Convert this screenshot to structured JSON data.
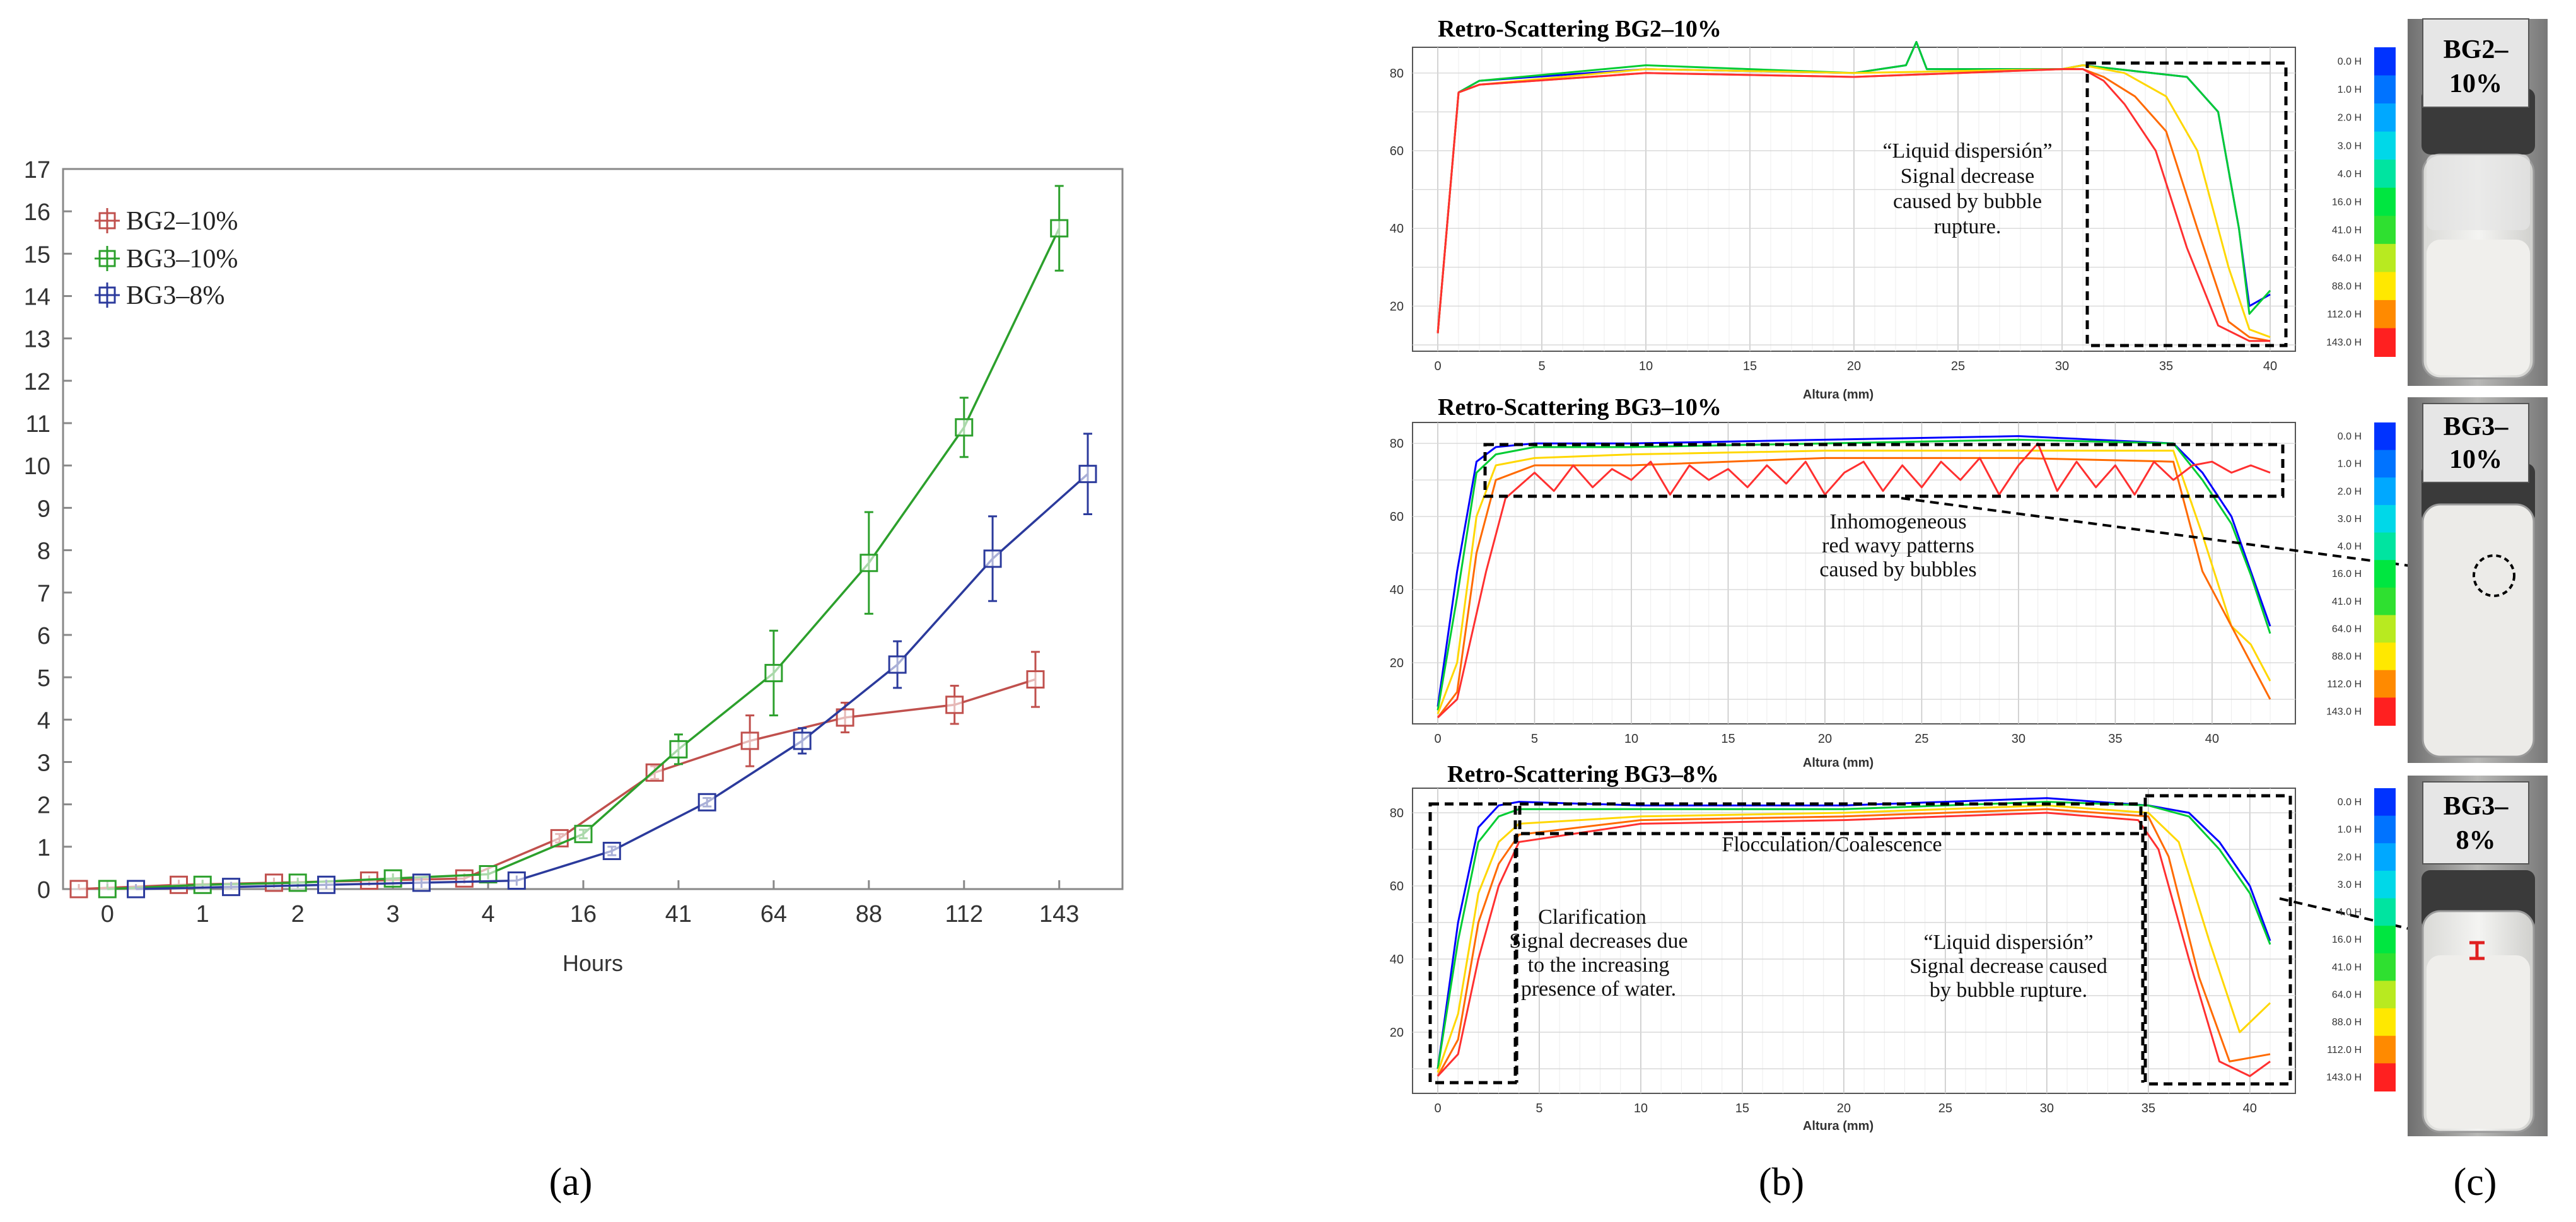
{
  "panel_labels": {
    "a": "(a)",
    "b": "(b)",
    "c": "(c)"
  },
  "chart_data": [
    {
      "id": "panel-a",
      "type": "line",
      "title": "",
      "xlabel": "Hours",
      "ylabel": "",
      "categories": [
        "0",
        "1",
        "2",
        "3",
        "4",
        "16",
        "41",
        "64",
        "88",
        "112",
        "143"
      ],
      "y_ticks": [
        0,
        1,
        2,
        3,
        4,
        5,
        6,
        7,
        8,
        9,
        10,
        11,
        12,
        13,
        14,
        15,
        16,
        17
      ],
      "ylim": [
        0,
        17
      ],
      "legend_position": "top-left",
      "series": [
        {
          "name": "BG2–10%",
          "color": "#c0504d",
          "x": [
            -0.3,
            0.75,
            1.75,
            2.75,
            3.75,
            4.75,
            5.75,
            6.75,
            7.75,
            8.9,
            9.75
          ],
          "values": [
            0.0,
            0.1,
            0.15,
            0.2,
            0.25,
            1.2,
            2.75,
            3.5,
            4.05,
            4.35,
            4.95
          ],
          "errors": [
            0,
            0,
            0,
            0,
            0,
            0.1,
            0.15,
            0.6,
            0.35,
            0.45,
            0.65
          ]
        },
        {
          "name": "BG3–10%",
          "color": "#2ca02c",
          "x": [
            0.0,
            1.0,
            2.0,
            3.0,
            4.0,
            5.0,
            6.0,
            7.0,
            8.0,
            9.0,
            10.0
          ],
          "values": [
            0.0,
            0.1,
            0.15,
            0.25,
            0.35,
            1.3,
            3.3,
            5.1,
            7.7,
            10.9,
            15.6
          ],
          "errors": [
            0,
            0,
            0,
            0,
            0,
            0.1,
            0.35,
            1.0,
            1.2,
            0.7,
            1.0
          ]
        },
        {
          "name": "BG3–8%",
          "color": "#2b3a9c",
          "x": [
            0.3,
            1.3,
            2.3,
            3.3,
            4.3,
            5.3,
            6.3,
            7.3,
            8.3,
            9.3,
            10.3
          ],
          "values": [
            0.0,
            0.05,
            0.1,
            0.15,
            0.2,
            0.9,
            2.05,
            3.5,
            5.3,
            7.8,
            9.8
          ],
          "errors": [
            0,
            0,
            0,
            0,
            0,
            0.1,
            0.1,
            0.3,
            0.55,
            1.0,
            0.95
          ]
        }
      ]
    },
    {
      "id": "panel-b1",
      "type": "line",
      "title": "Retro-Scattering BG2–10%",
      "xlabel": "Altura (mm)",
      "xlim": [
        0,
        40
      ],
      "ylim": [
        10,
        85
      ],
      "x_ticks": [
        0,
        5,
        10,
        15,
        20,
        25,
        30,
        35,
        40
      ],
      "y_ticks": [
        20,
        40,
        60,
        80
      ],
      "annotations": [
        "“Liquid dispersión”",
        "Signal decrease",
        "caused by bubble",
        "rupture."
      ],
      "series": [
        {
          "name": "0.0 H",
          "color": "#0000ff",
          "x": [
            0,
            1,
            2,
            10,
            20,
            22.5,
            23,
            23.5,
            30,
            31,
            36,
            37.5,
            38.5,
            39,
            40
          ],
          "values": [
            13,
            75,
            78,
            81,
            80,
            82,
            88,
            81,
            81,
            82,
            79,
            70,
            40,
            20,
            23
          ]
        },
        {
          "name": "16.0 H",
          "color": "#00cc33",
          "x": [
            0,
            1,
            2,
            10,
            20,
            22.5,
            23,
            23.5,
            30,
            31,
            36,
            37.5,
            38.5,
            39,
            40
          ],
          "values": [
            13,
            75,
            78,
            82,
            80,
            82,
            88,
            81,
            81,
            82,
            79,
            70,
            40,
            18,
            24
          ]
        },
        {
          "name": "64.0 H",
          "color": "#ffd700",
          "x": [
            0,
            1,
            2,
            10,
            20,
            30,
            31,
            33,
            35,
            36.5,
            38,
            39,
            40
          ],
          "values": [
            13,
            75,
            77,
            81,
            80,
            81,
            82,
            80,
            74,
            60,
            30,
            14,
            12
          ]
        },
        {
          "name": "143.0 H",
          "color": "#ff6a00",
          "x": [
            0,
            1,
            2,
            10,
            20,
            30,
            31,
            32,
            33.5,
            35,
            36.5,
            38,
            39,
            40
          ],
          "values": [
            13,
            75,
            77,
            80,
            79,
            81,
            81,
            79,
            74,
            65,
            40,
            16,
            12,
            11
          ]
        },
        {
          "name": "112.0 H",
          "color": "#ff3030",
          "x": [
            0,
            1,
            2,
            10,
            20,
            30,
            31,
            32,
            33,
            34.5,
            36,
            37.5,
            39,
            40
          ],
          "values": [
            13,
            75,
            77,
            80,
            79,
            81,
            81,
            78,
            72,
            60,
            35,
            15,
            11,
            11
          ]
        }
      ]
    },
    {
      "id": "panel-b2",
      "type": "line",
      "title": "Retro-Scattering BG3–10%",
      "xlabel": "Altura (mm)",
      "xlim": [
        0,
        43
      ],
      "ylim": [
        5,
        84
      ],
      "x_ticks": [
        0,
        5,
        10,
        15,
        20,
        25,
        30,
        35,
        40
      ],
      "y_ticks": [
        20,
        40,
        60,
        80
      ],
      "annotations": [
        "Inhomogeneous",
        "red wavy patterns",
        "caused by bubbles"
      ],
      "series": [
        {
          "name": "0.0 H",
          "color": "#0000ff",
          "x": [
            0,
            1,
            2,
            3,
            5,
            10,
            20,
            30,
            38,
            39.5,
            41,
            42,
            43
          ],
          "values": [
            8,
            45,
            75,
            79,
            80,
            80,
            81,
            82,
            80,
            72,
            60,
            45,
            30
          ]
        },
        {
          "name": "16.0 H",
          "color": "#00cc33",
          "x": [
            0,
            1,
            2,
            3,
            5,
            10,
            20,
            30,
            38,
            39.5,
            41,
            42,
            43
          ],
          "values": [
            7,
            38,
            72,
            77,
            79,
            79,
            80,
            81,
            80,
            70,
            58,
            44,
            28
          ]
        },
        {
          "name": "64.0 H",
          "color": "#ffd700",
          "x": [
            0,
            1,
            2,
            3,
            5,
            10,
            20,
            30,
            38,
            39.5,
            41,
            42,
            43
          ],
          "values": [
            6,
            20,
            60,
            74,
            76,
            77,
            78,
            78,
            78,
            55,
            30,
            25,
            15
          ]
        },
        {
          "name": "143.0 H",
          "color": "#ff6a00",
          "x": [
            0,
            1,
            2,
            3,
            5,
            10,
            20,
            30,
            38,
            39.5,
            41,
            42,
            43
          ],
          "values": [
            5,
            12,
            50,
            70,
            74,
            74,
            76,
            76,
            75,
            45,
            30,
            20,
            10
          ]
        },
        {
          "name": "112.0 H",
          "color": "#ff3030",
          "x": [
            0,
            1,
            2.5,
            3.5,
            5,
            6,
            7,
            8,
            9,
            10,
            11,
            12,
            13,
            14,
            15,
            16,
            17,
            18,
            19,
            20,
            21,
            22,
            23,
            24,
            25,
            26,
            27,
            28,
            29,
            30,
            31,
            32,
            33,
            34,
            35,
            36,
            37,
            38,
            39,
            40,
            41,
            42,
            43
          ],
          "values": [
            5,
            10,
            45,
            65,
            72,
            67,
            74,
            68,
            73,
            70,
            75,
            66,
            74,
            70,
            73,
            68,
            74,
            69,
            75,
            66,
            72,
            75,
            67,
            74,
            68,
            75,
            70,
            76,
            66,
            74,
            80,
            67,
            75,
            68,
            74,
            66,
            75,
            70,
            74,
            75,
            72,
            74,
            72
          ]
        }
      ]
    },
    {
      "id": "panel-b3",
      "type": "line",
      "title": "Retro-Scattering BG3–8%",
      "xlabel": "Altura (mm)",
      "xlim": [
        0,
        41
      ],
      "ylim": [
        5,
        85
      ],
      "x_ticks": [
        0,
        5,
        10,
        15,
        20,
        25,
        30,
        35,
        40
      ],
      "y_ticks": [
        20,
        40,
        60,
        80
      ],
      "annotations": [
        "Flocculation/Coalescence",
        "Clarification",
        "Signal decreases due",
        "to the increasing",
        "presence of water.",
        "“Liquid dispersión”",
        "Signal decrease caused",
        "by bubble rupture."
      ],
      "series": [
        {
          "name": "0.0 H",
          "color": "#0000ff",
          "x": [
            0,
            1,
            2,
            3,
            4,
            10,
            20,
            30,
            35,
            37,
            38.5,
            40,
            41
          ],
          "values": [
            10,
            50,
            76,
            82,
            83,
            82,
            82,
            84,
            82,
            80,
            72,
            60,
            45
          ]
        },
        {
          "name": "16.0 H",
          "color": "#00cc33",
          "x": [
            0,
            1,
            2,
            3,
            4,
            10,
            20,
            30,
            35,
            37,
            38.5,
            40,
            41
          ],
          "values": [
            10,
            45,
            72,
            79,
            81,
            81,
            81,
            83,
            82,
            79,
            70,
            58,
            44
          ]
        },
        {
          "name": "64.0 H",
          "color": "#ffd700",
          "x": [
            0,
            1,
            2,
            3,
            4,
            10,
            20,
            30,
            35,
            36.5,
            38,
            39.5,
            41
          ],
          "values": [
            9,
            25,
            58,
            72,
            77,
            79,
            80,
            82,
            80,
            72,
            45,
            20,
            28
          ]
        },
        {
          "name": "143.0 H",
          "color": "#ff6a00",
          "x": [
            0,
            1,
            2,
            3,
            4,
            10,
            20,
            30,
            35,
            36,
            37.5,
            39,
            41
          ],
          "values": [
            8,
            18,
            50,
            66,
            74,
            78,
            79,
            81,
            79,
            68,
            35,
            12,
            14
          ]
        },
        {
          "name": "112.0 H",
          "color": "#ff3030",
          "x": [
            0,
            1,
            2,
            3,
            4,
            10,
            20,
            30,
            34.5,
            35.5,
            37,
            38.5,
            40,
            41
          ],
          "values": [
            8,
            14,
            40,
            60,
            72,
            77,
            78,
            80,
            78,
            70,
            40,
            12,
            8,
            12
          ]
        }
      ]
    }
  ],
  "colorbar": {
    "labels": [
      "0.0 H",
      "1.0 H",
      "2.0 H",
      "3.0 H",
      "4.0 H",
      "16.0 H",
      "41.0 H",
      "64.0 H",
      "88.0 H",
      "112.0 H",
      "143.0 H"
    ],
    "colors": [
      "#0033ff",
      "#0073ff",
      "#00a8ff",
      "#00d8e8",
      "#00e4a0",
      "#00e640",
      "#2fe030",
      "#b8ea20",
      "#ffe800",
      "#ff8a00",
      "#ff2020"
    ]
  },
  "photos": [
    {
      "label_line1": "BG2–",
      "label_line2": "10%"
    },
    {
      "label_line1": "BG3–",
      "label_line2": "10%"
    },
    {
      "label_line1": "BG3–",
      "label_line2": "8%"
    }
  ]
}
